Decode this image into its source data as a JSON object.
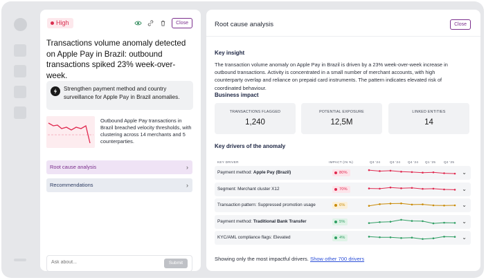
{
  "alert": {
    "severity": "High",
    "severity_color": "#d92e4f",
    "close_label": "Close",
    "title": "Transactions volume anomaly detected on Apple Pay in Brazil: outbound transactions spiked 23% week-over-week.",
    "recommendation": "Strengthen payment method and country surveillance for Apple Pay in Brazil anomalies.",
    "summary": "Outbound Apple Pay transactions in Brazil breached velocity thresholds, with clustering across 14 merchants and 5 counterparties.",
    "nav": [
      {
        "label": "Root cause analysis"
      },
      {
        "label": "Recommendations"
      }
    ],
    "ask_placeholder": "Ask about...",
    "submit_label": "Submit"
  },
  "panel": {
    "title": "Root cause analysis",
    "close_label": "Close",
    "key_insight_heading": "Key insight",
    "key_insight": "The transaction volume anomaly on Apple Pay in Brazil is driven by a 23% week-over-week increase in outbound transactions. Activity is concentrated in a small number of merchant accounts, with high counterparty overlap and reliance on prepaid card instruments. The pattern indicates elevated risk of coordinated behaviour.",
    "impact_heading": "Business impact",
    "metrics": [
      {
        "label": "TRANSACTIONS FLAGGED",
        "value": "1,240"
      },
      {
        "label": "POTENTIAL EXPOSURE",
        "value": "12,5M"
      },
      {
        "label": "LINKED ENTITIES",
        "value": "14"
      }
    ],
    "drivers_heading": "Key drivers of the anomaly",
    "columns": {
      "driver": "KEY DRIVER",
      "impact": "IMPACT (IN %)",
      "ticks": [
        "Q3 '24",
        "Q3 '24",
        "Q4 '24",
        "Q1 '25",
        "Q2 '25"
      ]
    },
    "drivers": [
      {
        "prefix": "Payment method: ",
        "bold": "Apple Pay (Brazil)",
        "impact": "80%",
        "color": "#e0294f",
        "bg": "#fde4ea",
        "trend": [
          0.78,
          0.68,
          0.72,
          0.62,
          0.58,
          0.52,
          0.55,
          0.46,
          0.42
        ]
      },
      {
        "prefix": "Segment: Merchant cluster X12",
        "bold": "",
        "impact": "70%",
        "color": "#e0294f",
        "bg": "#fde4ea",
        "trend": [
          0.6,
          0.58,
          0.7,
          0.62,
          0.66,
          0.56,
          0.58,
          0.5,
          0.47
        ]
      },
      {
        "prefix": "Transaction pattern: Suppressed promotion usage",
        "bold": "",
        "impact": "6%",
        "color": "#c98a06",
        "bg": "#fbf0d9",
        "trend": [
          0.45,
          0.62,
          0.68,
          0.7,
          0.58,
          0.6,
          0.5,
          0.48,
          0.5
        ]
      },
      {
        "prefix": "Payment method: ",
        "bold": "Traditional Bank Transfer",
        "impact": "5%",
        "color": "#2f9e63",
        "bg": "#dff3e7",
        "trend": [
          0.38,
          0.48,
          0.52,
          0.72,
          0.6,
          0.58,
          0.35,
          0.42,
          0.4
        ]
      },
      {
        "prefix": "KYC/AML compliance flags: Elevated",
        "bold": "",
        "impact": "4%",
        "color": "#2f9e63",
        "bg": "#dff3e7",
        "trend": [
          0.62,
          0.56,
          0.55,
          0.48,
          0.52,
          0.38,
          0.45,
          0.62,
          0.6
        ]
      }
    ],
    "footer_text": "Showing only the most impactful drivers.",
    "footer_link": "Show other 700 drivers"
  }
}
